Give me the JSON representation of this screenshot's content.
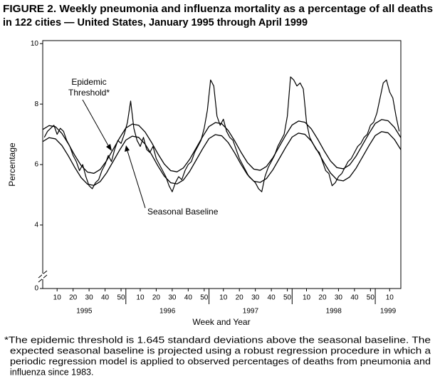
{
  "chart_data": {
    "type": "line",
    "title": [
      "FIGURE 2. Weekly pneumonia and influenza mortality as a percentage of all deaths",
      "in 122 cities — United States, January 1995 through April 1999"
    ],
    "y_label": "Percentage",
    "x_label": "Week and Year",
    "ylim": [
      1.9,
      10.1
    ],
    "yticks": [
      0,
      4,
      6,
      8,
      10
    ],
    "axis_break": true,
    "xlim": [
      0,
      224
    ],
    "xticks": [
      {
        "value": 9,
        "label": "10"
      },
      {
        "value": 19,
        "label": "20"
      },
      {
        "value": 29,
        "label": "30"
      },
      {
        "value": 39,
        "label": "40"
      },
      {
        "value": 49,
        "label": "50"
      },
      {
        "value": 61,
        "label": "10"
      },
      {
        "value": 71,
        "label": "20"
      },
      {
        "value": 81,
        "label": "30"
      },
      {
        "value": 91,
        "label": "40"
      },
      {
        "value": 101,
        "label": "50"
      },
      {
        "value": 113,
        "label": "10"
      },
      {
        "value": 123,
        "label": "20"
      },
      {
        "value": 133,
        "label": "30"
      },
      {
        "value": 143,
        "label": "40"
      },
      {
        "value": 153,
        "label": "50"
      },
      {
        "value": 165,
        "label": "10"
      },
      {
        "value": 175,
        "label": "20"
      },
      {
        "value": 185,
        "label": "30"
      },
      {
        "value": 195,
        "label": "40"
      },
      {
        "value": 205,
        "label": "50"
      },
      {
        "value": 217,
        "label": "10"
      }
    ],
    "years": [
      {
        "label": "1995",
        "start": 0,
        "end": 52
      },
      {
        "label": "1996",
        "start": 52,
        "end": 104
      },
      {
        "label": "1997",
        "start": 104,
        "end": 156
      },
      {
        "label": "1998",
        "start": 156,
        "end": 208
      },
      {
        "label": "1999",
        "start": 208,
        "end": 224
      }
    ],
    "series": [
      {
        "color": "#000000",
        "width": 1.2,
        "x": [
          1,
          3,
          5,
          7,
          9,
          11,
          13,
          15,
          17,
          19,
          21,
          23,
          25,
          27,
          29,
          31,
          33,
          35,
          37,
          39,
          41,
          43,
          45,
          47,
          49,
          51,
          53,
          55,
          57,
          59,
          61,
          63,
          65,
          67,
          69,
          71,
          73,
          75,
          77,
          79,
          81,
          83,
          85,
          87,
          89,
          91,
          93,
          95,
          97,
          99,
          101,
          103,
          105,
          107,
          109,
          111,
          113,
          115,
          117,
          119,
          121,
          123,
          125,
          127,
          129,
          131,
          133,
          135,
          137,
          139,
          141,
          143,
          145,
          147,
          149,
          151,
          153,
          155,
          157,
          159,
          161,
          163,
          165,
          167,
          169,
          171,
          173,
          175,
          177,
          179,
          181,
          183,
          185,
          187,
          189,
          191,
          193,
          195,
          197,
          199,
          201,
          203,
          205,
          207,
          209,
          211,
          213,
          215,
          217,
          219,
          221,
          223
        ],
        "values": [
          6.9,
          7.1,
          7.2,
          7.3,
          7.0,
          7.2,
          7.1,
          6.8,
          6.6,
          6.3,
          6.1,
          5.8,
          6.0,
          5.6,
          5.3,
          5.2,
          5.4,
          5.5,
          5.8,
          6.0,
          6.3,
          6.1,
          6.5,
          6.8,
          6.7,
          7.0,
          7.4,
          8.1,
          7.2,
          6.8,
          6.6,
          6.9,
          6.5,
          6.4,
          6.6,
          6.2,
          6.0,
          5.8,
          5.6,
          5.3,
          5.1,
          5.4,
          5.6,
          5.5,
          5.8,
          6.0,
          6.1,
          6.4,
          6.6,
          6.8,
          7.2,
          7.8,
          8.8,
          8.6,
          7.6,
          7.3,
          7.5,
          7.1,
          6.9,
          6.8,
          6.5,
          6.2,
          6.0,
          5.8,
          5.6,
          5.5,
          5.4,
          5.2,
          5.1,
          5.6,
          5.9,
          6.1,
          6.3,
          6.6,
          6.8,
          7.0,
          7.6,
          8.9,
          8.8,
          8.6,
          8.7,
          8.5,
          7.4,
          6.9,
          6.7,
          6.5,
          6.4,
          6.1,
          5.8,
          5.7,
          5.3,
          5.4,
          5.6,
          5.7,
          5.9,
          6.1,
          6.2,
          6.4,
          6.6,
          6.7,
          6.9,
          7.0,
          7.3,
          7.4,
          7.7,
          8.2,
          8.7,
          8.8,
          8.4,
          8.2,
          7.6,
          7.1
        ]
      },
      {
        "color": "#000000",
        "width": 1.3,
        "x": [
          0,
          4,
          8,
          12,
          16,
          20,
          24,
          28,
          32,
          36,
          40,
          44,
          48,
          52,
          56,
          60,
          64,
          68,
          72,
          76,
          80,
          84,
          88,
          92,
          96,
          100,
          104,
          108,
          112,
          116,
          120,
          124,
          128,
          132,
          136,
          140,
          144,
          148,
          152,
          156,
          160,
          164,
          168,
          172,
          176,
          180,
          184,
          188,
          192,
          196,
          200,
          204,
          208,
          212,
          216,
          220,
          224
        ],
        "values": [
          7.16,
          7.29,
          7.25,
          7.03,
          6.69,
          6.31,
          5.97,
          5.75,
          5.71,
          5.84,
          6.13,
          6.5,
          6.87,
          7.21,
          7.34,
          7.3,
          7.08,
          6.74,
          6.36,
          6.02,
          5.8,
          5.76,
          5.89,
          6.18,
          6.55,
          6.92,
          7.26,
          7.39,
          7.35,
          7.13,
          6.79,
          6.41,
          6.07,
          5.85,
          5.81,
          5.94,
          6.23,
          6.6,
          6.97,
          7.31,
          7.44,
          7.4,
          7.18,
          6.84,
          6.46,
          6.12,
          5.9,
          5.86,
          5.99,
          6.28,
          6.65,
          7.02,
          7.36,
          7.49,
          7.45,
          7.23,
          6.89
        ]
      },
      {
        "color": "#000000",
        "width": 1.3,
        "x": [
          0,
          4,
          8,
          12,
          16,
          20,
          24,
          28,
          32,
          36,
          40,
          44,
          48,
          52,
          56,
          60,
          64,
          68,
          72,
          76,
          80,
          84,
          88,
          92,
          96,
          100,
          104,
          108,
          112,
          116,
          120,
          124,
          128,
          132,
          136,
          140,
          144,
          148,
          152,
          156,
          160,
          164,
          168,
          172,
          176,
          180,
          184,
          188,
          192,
          196,
          200,
          204,
          208,
          212,
          216,
          220,
          224
        ],
        "values": [
          6.76,
          6.89,
          6.85,
          6.63,
          6.29,
          5.91,
          5.57,
          5.35,
          5.31,
          5.44,
          5.73,
          6.1,
          6.47,
          6.81,
          6.94,
          6.9,
          6.68,
          6.34,
          5.96,
          5.62,
          5.4,
          5.36,
          5.49,
          5.78,
          6.15,
          6.52,
          6.86,
          6.99,
          6.95,
          6.73,
          6.39,
          6.01,
          5.67,
          5.45,
          5.41,
          5.54,
          5.83,
          6.2,
          6.57,
          6.91,
          7.04,
          7.0,
          6.78,
          6.44,
          6.06,
          5.72,
          5.5,
          5.46,
          5.59,
          5.88,
          6.25,
          6.62,
          6.96,
          7.09,
          7.05,
          6.83,
          6.49
        ]
      }
    ],
    "annotations": [
      {
        "text": [
          "Epidemic",
          "Threshold*"
        ]
      },
      {
        "text": "Seasonal Baseline"
      }
    ],
    "footnote": [
      "*The epidemic threshold is 1.645 standard deviations above the seasonal baseline. The",
      "expected seasonal baseline is projected using a robust regression procedure in which a",
      "periodic regression model is applied to observed percentages of deaths from pneumonia and",
      "influenza since 1983."
    ]
  }
}
